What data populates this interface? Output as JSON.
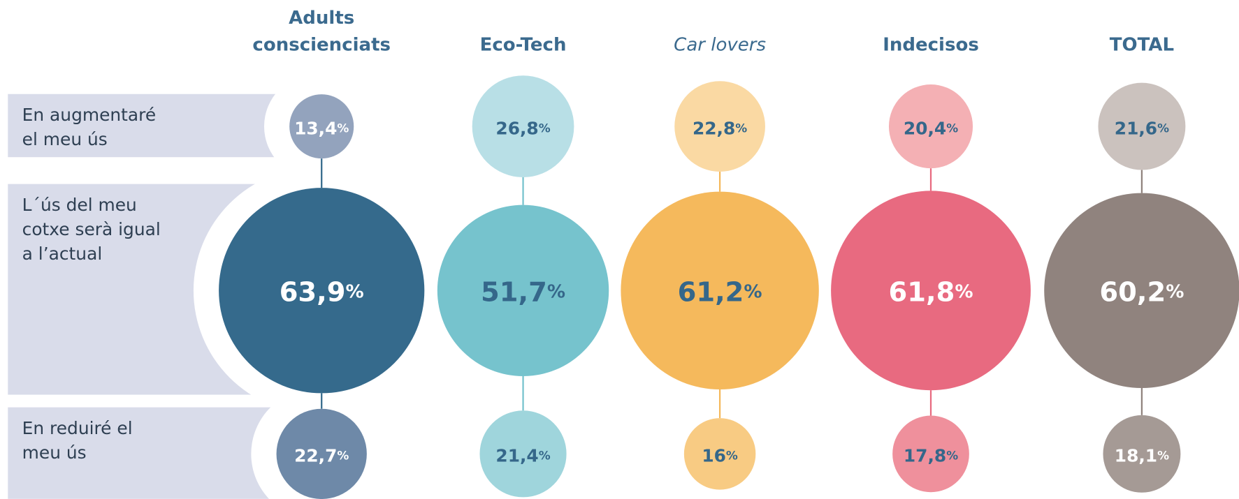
{
  "chart_data": {
    "type": "bubble",
    "categories": [
      "Adults conscienciats",
      "Eco-Tech",
      "Car lovers",
      "Indecisos",
      "TOTAL"
    ],
    "italic_categories": [
      "Car lovers"
    ],
    "series": [
      {
        "name": "En augmentaré el meu ús",
        "values": [
          13.4,
          26.8,
          22.8,
          20.4,
          21.6
        ],
        "value_labels": [
          "13,4%",
          "26,8%",
          "22,8%",
          "20,4%",
          "21,6%"
        ],
        "colors": [
          "#93a3bd",
          "#b8dfe6",
          "#fad9a3",
          "#f4b0b4",
          "#cbc2be"
        ]
      },
      {
        "name": "L´ús del meu cotxe serà igual a l’actual",
        "values": [
          63.9,
          51.7,
          61.2,
          61.8,
          60.2
        ],
        "value_labels": [
          "63,9%",
          "51,7%",
          "61,2%",
          "61,8%",
          "60,2%"
        ],
        "colors": [
          "#356a8c",
          "#76c3cd",
          "#f5b95c",
          "#e86a80",
          "#90837e"
        ]
      },
      {
        "name": "En reduiré el meu ús",
        "values": [
          22.7,
          21.4,
          16,
          17.8,
          18.1
        ],
        "value_labels": [
          "22,7%",
          "21,4%",
          "16%",
          "17,8%",
          "18,1%"
        ],
        "colors": [
          "#6e89a8",
          "#9fd5dc",
          "#f8cb83",
          "#ef909c",
          "#a59a95"
        ]
      }
    ]
  }
}
